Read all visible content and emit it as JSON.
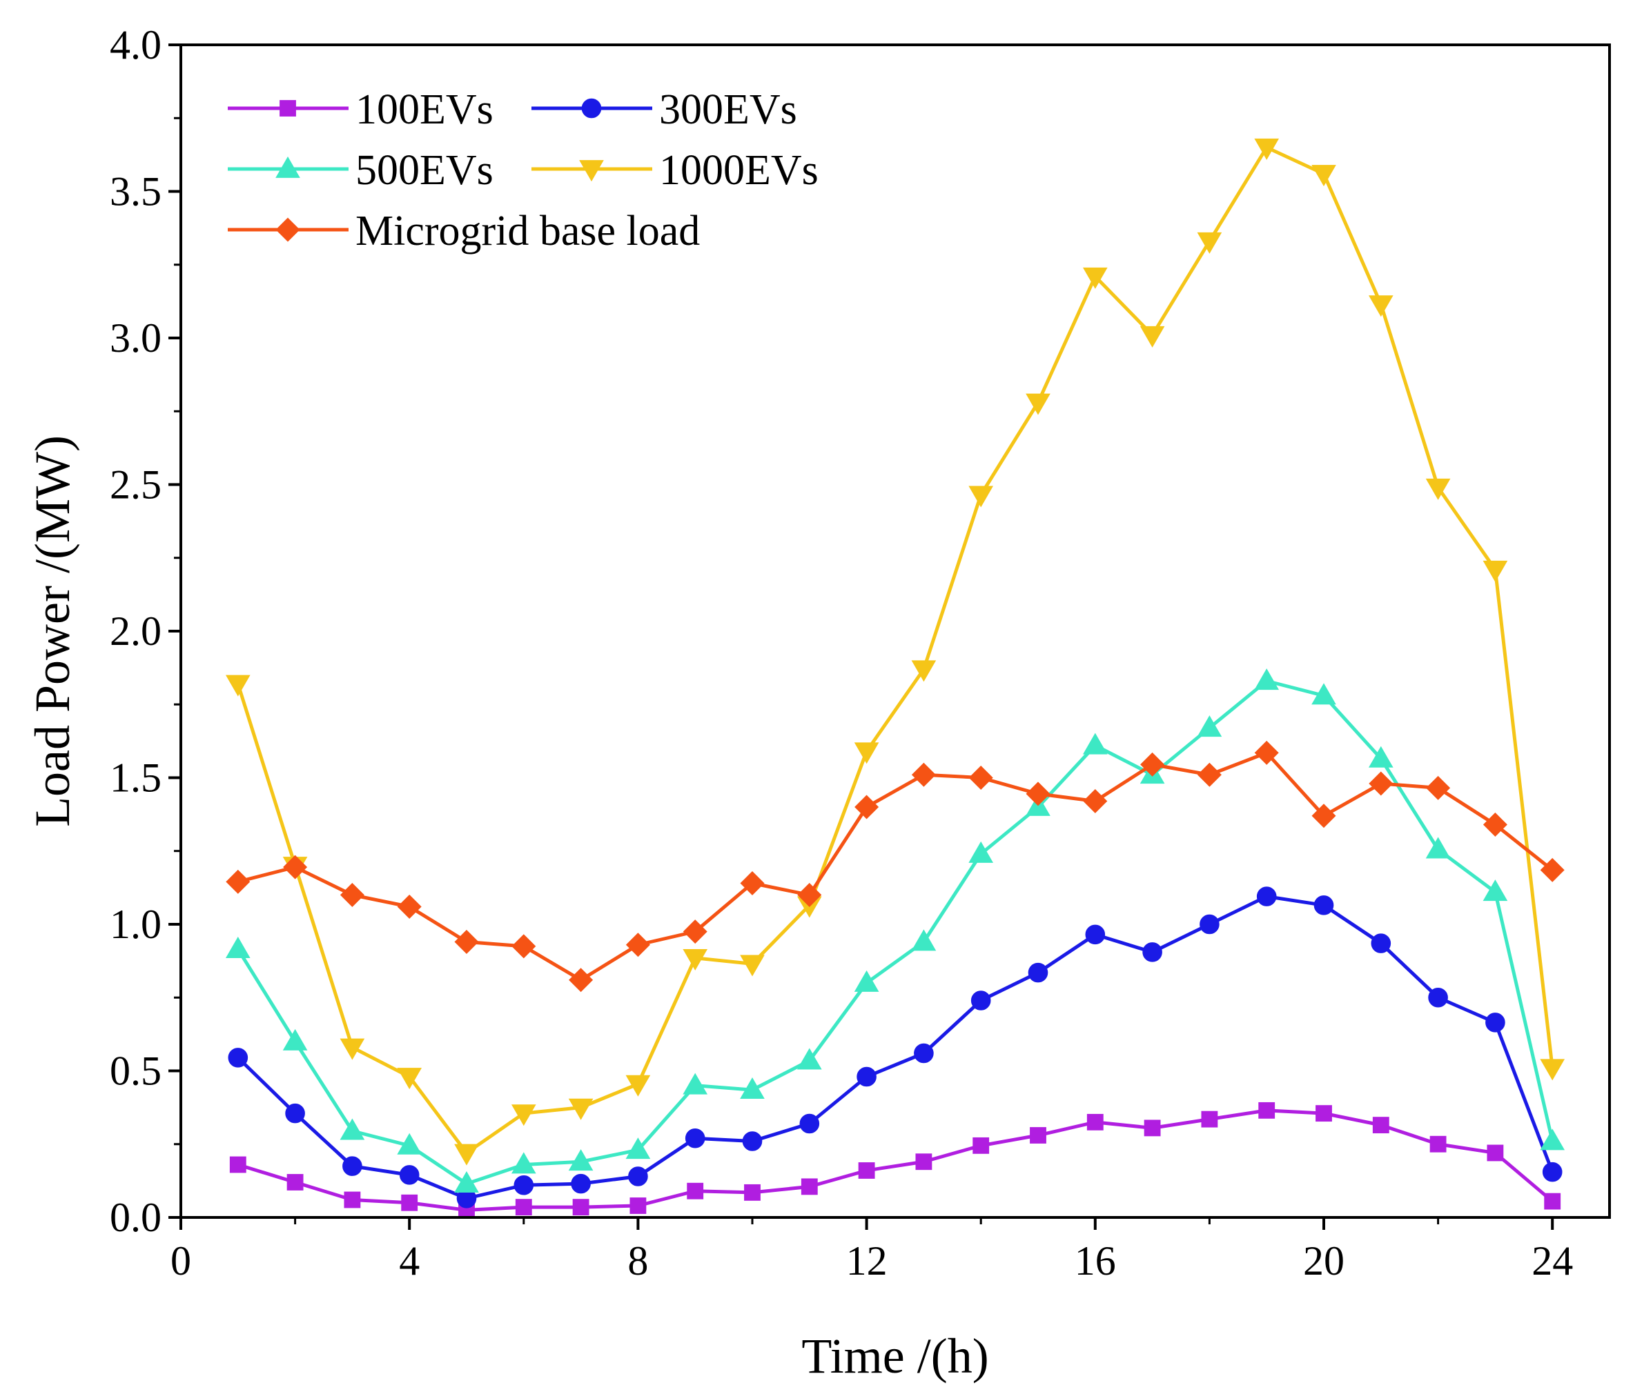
{
  "chart_data": {
    "type": "line",
    "xlabel": "Time /(h)",
    "ylabel": "Load Power /(MW)",
    "xlim": [
      0,
      25
    ],
    "ylim": [
      0,
      4.0
    ],
    "x_ticks": [
      0,
      4,
      8,
      12,
      16,
      20,
      24
    ],
    "y_ticks": [
      0.0,
      0.5,
      1.0,
      1.5,
      2.0,
      2.5,
      3.0,
      3.5,
      4.0
    ],
    "y_tick_labels": [
      "0.0",
      "0.5",
      "1.0",
      "1.5",
      "2.0",
      "2.5",
      "3.0",
      "3.5",
      "4.0"
    ],
    "grid": false,
    "legend_position": "top-left",
    "x": [
      1,
      2,
      3,
      4,
      5,
      6,
      7,
      8,
      9,
      10,
      11,
      12,
      13,
      14,
      15,
      16,
      17,
      18,
      19,
      20,
      21,
      22,
      23,
      24
    ],
    "series": [
      {
        "name": "100EVs",
        "color": "#b01ee0",
        "marker": "square",
        "values": [
          0.18,
          0.12,
          0.06,
          0.05,
          0.025,
          0.035,
          0.035,
          0.04,
          0.09,
          0.085,
          0.105,
          0.16,
          0.19,
          0.245,
          0.28,
          0.325,
          0.305,
          0.335,
          0.365,
          0.355,
          0.315,
          0.25,
          0.22,
          0.055
        ]
      },
      {
        "name": "300EVs",
        "color": "#1a1ae6",
        "marker": "circle",
        "values": [
          0.545,
          0.355,
          0.175,
          0.145,
          0.065,
          0.11,
          0.115,
          0.14,
          0.27,
          0.26,
          0.32,
          0.48,
          0.56,
          0.74,
          0.835,
          0.965,
          0.905,
          1.0,
          1.095,
          1.065,
          0.935,
          0.75,
          0.665,
          0.155
        ]
      },
      {
        "name": "500EVs",
        "color": "#3de8c4",
        "marker": "triangle-up",
        "values": [
          0.915,
          0.6,
          0.295,
          0.245,
          0.115,
          0.18,
          0.19,
          0.23,
          0.45,
          0.435,
          0.535,
          0.8,
          0.94,
          1.24,
          1.4,
          1.61,
          1.51,
          1.67,
          1.83,
          1.78,
          1.565,
          1.255,
          1.11,
          0.26
        ]
      },
      {
        "name": "1000EVs",
        "color": "#f5c518",
        "marker": "triangle-down",
        "values": [
          1.82,
          1.2,
          0.58,
          0.48,
          0.22,
          0.355,
          0.375,
          0.455,
          0.885,
          0.865,
          1.065,
          1.59,
          1.87,
          2.465,
          2.78,
          3.21,
          3.01,
          3.33,
          3.65,
          3.56,
          3.115,
          2.49,
          2.21,
          0.51
        ]
      },
      {
        "name": "Microgrid base load",
        "color": "#f55314",
        "marker": "diamond",
        "values": [
          1.145,
          1.195,
          1.1,
          1.06,
          0.94,
          0.925,
          0.81,
          0.93,
          0.975,
          1.14,
          1.1,
          1.4,
          1.51,
          1.5,
          1.445,
          1.42,
          1.545,
          1.51,
          1.585,
          1.37,
          1.48,
          1.465,
          1.34,
          1.185
        ]
      }
    ]
  }
}
